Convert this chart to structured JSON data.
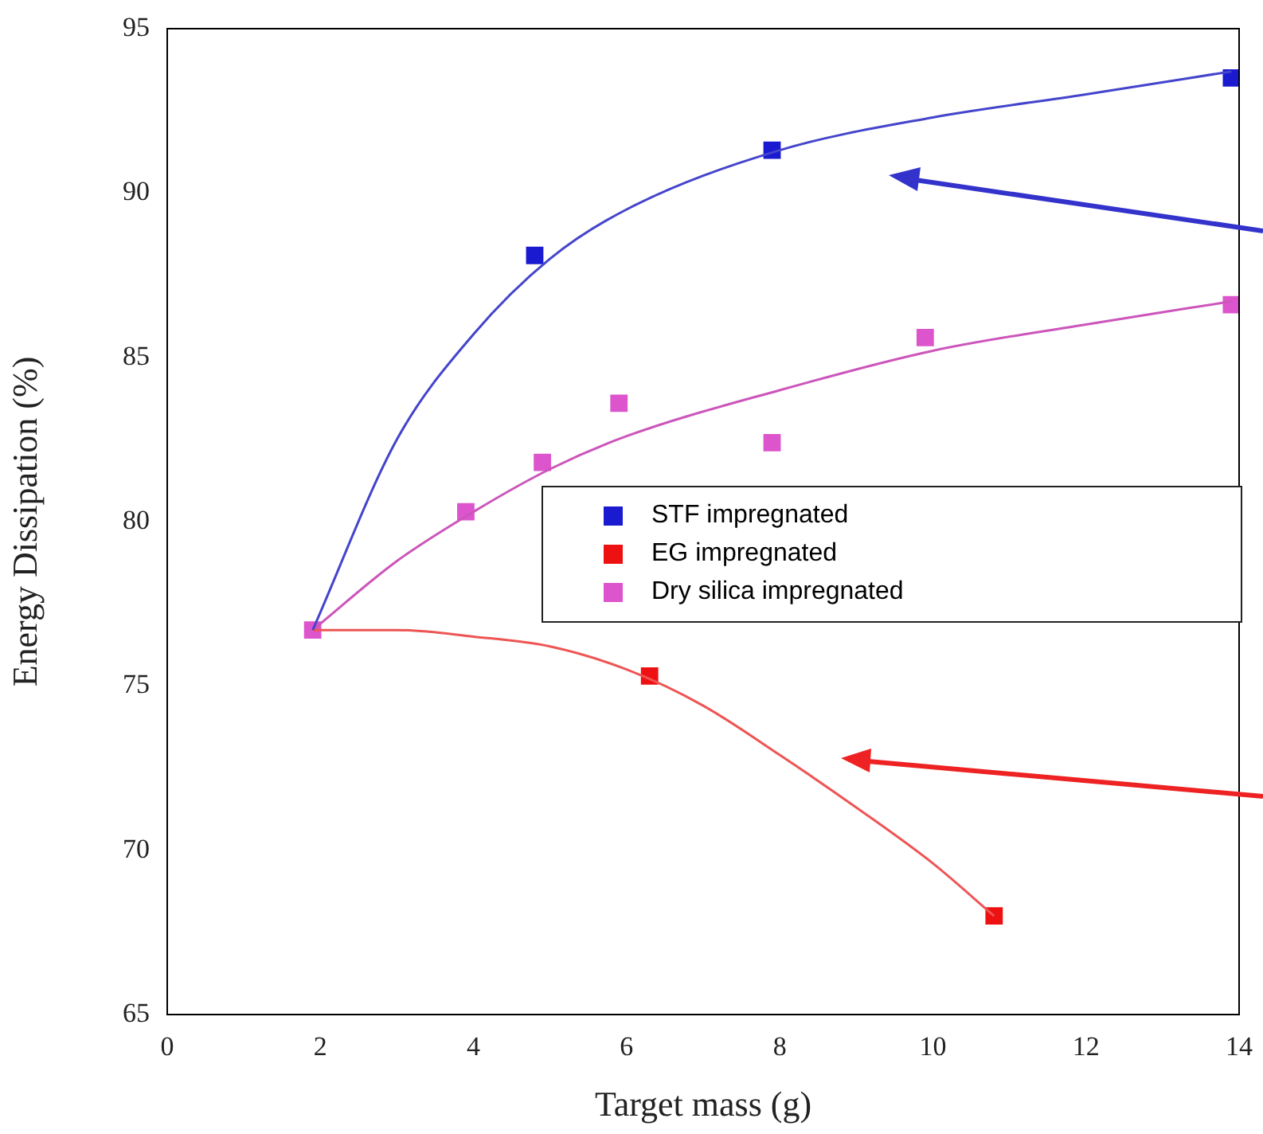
{
  "chart_data": {
    "type": "scatter",
    "xlabel": "Target mass (g)",
    "ylabel": "Energy Dissipation (%)",
    "xlim": [
      0,
      14
    ],
    "xticks": [
      0,
      2,
      4,
      6,
      8,
      10,
      12,
      14
    ],
    "ylim": [
      65,
      95
    ],
    "yticks": [
      65,
      70,
      75,
      80,
      85,
      90,
      95
    ],
    "grid": false,
    "legend": "right",
    "marker": "square",
    "series": [
      {
        "type": "line",
        "color": "#4444cc",
        "marker": "none",
        "x": [
          1.9,
          3,
          4,
          5,
          6,
          8,
          10,
          12,
          13.9
        ],
        "values": [
          76.7,
          82.5,
          85.7,
          88,
          89.5,
          91.3,
          92.3,
          93,
          93.7
        ]
      },
      {
        "type": "line",
        "color": "#ee5555",
        "marker": "none",
        "x": [
          1.9,
          3,
          4,
          5,
          6,
          7,
          8,
          9,
          10,
          10.8
        ],
        "values": [
          76.7,
          76.7,
          76.5,
          76.2,
          75.5,
          74.4,
          72.9,
          71.3,
          69.6,
          68
        ]
      },
      {
        "type": "line",
        "color": "#cc55bb",
        "marker": "none",
        "x": [
          1.9,
          3,
          4,
          5,
          6,
          8,
          10,
          12,
          13.9
        ],
        "values": [
          76.7,
          78.8,
          80.3,
          81.6,
          82.6,
          84,
          85.2,
          86,
          86.7
        ]
      },
      {
        "name": "STF impregnated",
        "color": "#1a1ad0",
        "x": [
          4.8,
          7.9,
          13.9
        ],
        "values": [
          88.1,
          91.3,
          93.5
        ]
      },
      {
        "name": "EG impregnated",
        "color": "#ee1111",
        "x": [
          6.3,
          10.8
        ],
        "values": [
          75.3,
          68
        ]
      },
      {
        "name": "Dry silica impregnated",
        "color": "#dd55cc",
        "x": [
          1.9,
          3.9,
          4.9,
          5.9,
          7.9,
          9.9,
          13.9
        ],
        "values": [
          76.7,
          80.3,
          81.8,
          83.6,
          82.4,
          85.6,
          86.6
        ]
      }
    ]
  }
}
